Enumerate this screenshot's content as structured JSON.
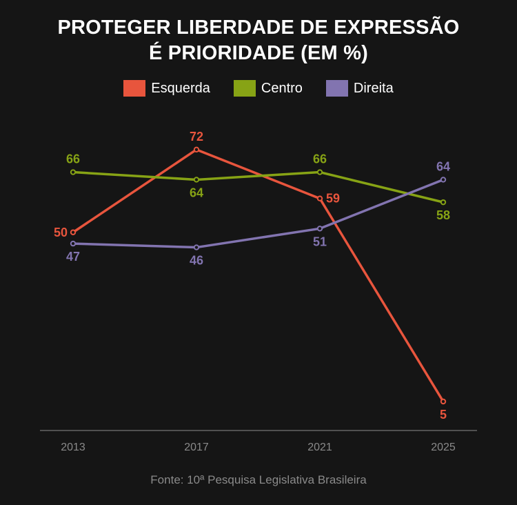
{
  "title": {
    "line1": "PROTEGER LIBERDADE DE EXPRESSÃO",
    "line2": "É PRIORIDADE (EM %)"
  },
  "source": "Fonte: 10ª Pesquisa Legislativa Brasileira",
  "colors": {
    "background": "#151515",
    "axis": "#8a8a8a",
    "esquerda": "#e8553d",
    "centro": "#87a315",
    "direita": "#8274b0"
  },
  "chart_data": {
    "type": "line",
    "title": "PROTEGER LIBERDADE DE EXPRESSÃO É PRIORIDADE (EM %)",
    "x": [
      "2013",
      "2017",
      "2021",
      "2025"
    ],
    "xlabel": "",
    "ylabel": "",
    "grid": false,
    "legend_position": "top-center",
    "series": [
      {
        "name": "Esquerda",
        "color": "#e8553d",
        "values": [
          50,
          72,
          59,
          5
        ]
      },
      {
        "name": "Centro",
        "color": "#87a315",
        "values": [
          66,
          64,
          66,
          58
        ]
      },
      {
        "name": "Direita",
        "color": "#8274b0",
        "values": [
          47,
          46,
          51,
          64
        ]
      }
    ]
  }
}
